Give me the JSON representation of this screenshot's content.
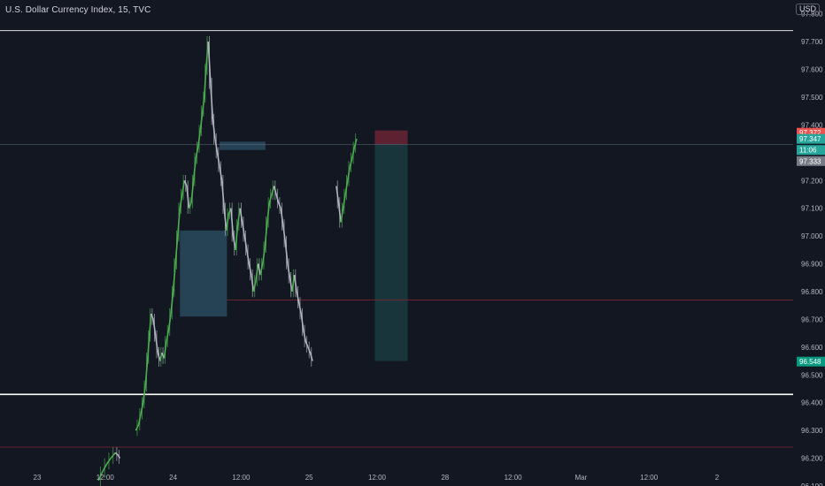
{
  "header": {
    "title": "U.S. Dollar Currency Index, 15, TVC",
    "currency": "USD"
  },
  "colors": {
    "background": "#131722",
    "up": "#4caf50",
    "down": "#b2b5be",
    "axis_text": "#b2b5be",
    "zone_blue": "#2a4a5e",
    "zone_target": "#17353a",
    "zone_stop": "#5c2232",
    "white_line": "#ffffff",
    "red_line": "#7a2630",
    "price_red": "#ef5350",
    "price_green": "#26a69a",
    "price_grey": "#787b86"
  },
  "chart_data": {
    "type": "candlestick",
    "ylim": [
      96.1,
      97.85
    ],
    "y_ticks": [
      "97.800",
      "97.700",
      "97.600",
      "97.500",
      "97.400",
      "97.200",
      "97.100",
      "97.000",
      "96.900",
      "96.800",
      "96.700",
      "96.600",
      "96.500",
      "96.400",
      "96.300",
      "96.200",
      "96.100"
    ],
    "x_ticks": [
      {
        "label": "23",
        "t": 0
      },
      {
        "label": "12:00",
        "t": 12
      },
      {
        "label": "24",
        "t": 24
      },
      {
        "label": "12:00",
        "t": 36
      },
      {
        "label": "25",
        "t": 48
      },
      {
        "label": "12:00",
        "t": 60
      },
      {
        "label": "28",
        "t": 72
      },
      {
        "label": "12:00",
        "t": 84
      },
      {
        "label": "Mar",
        "t": 96
      },
      {
        "label": "12:00",
        "t": 108
      },
      {
        "label": "2",
        "t": 120
      }
    ],
    "price_path": [
      [
        10.8,
        96.12
      ],
      [
        11.5,
        96.15
      ],
      [
        12.3,
        96.18
      ],
      [
        13.0,
        96.2
      ],
      [
        13.8,
        96.22
      ],
      [
        14.3,
        96.21
      ],
      [
        14.6,
        96.2
      ],
      [
        17.4,
        96.3
      ],
      [
        17.9,
        96.32
      ],
      [
        18.3,
        96.36
      ],
      [
        18.7,
        96.4
      ],
      [
        19.1,
        96.46
      ],
      [
        19.5,
        96.56
      ],
      [
        19.8,
        96.64
      ],
      [
        20.1,
        96.72
      ],
      [
        20.5,
        96.7
      ],
      [
        20.9,
        96.64
      ],
      [
        21.3,
        96.58
      ],
      [
        21.7,
        96.55
      ],
      [
        22.0,
        96.58
      ],
      [
        22.4,
        96.56
      ],
      [
        22.8,
        96.62
      ],
      [
        23.2,
        96.66
      ],
      [
        23.6,
        96.72
      ],
      [
        24.0,
        96.8
      ],
      [
        24.4,
        96.9
      ],
      [
        24.8,
        97.0
      ],
      [
        25.2,
        97.1
      ],
      [
        25.6,
        97.15
      ],
      [
        26.0,
        97.2
      ],
      [
        26.4,
        97.18
      ],
      [
        26.8,
        97.1
      ],
      [
        27.2,
        97.12
      ],
      [
        27.6,
        97.2
      ],
      [
        28.0,
        97.28
      ],
      [
        28.4,
        97.32
      ],
      [
        28.8,
        97.38
      ],
      [
        29.2,
        97.45
      ],
      [
        29.5,
        97.5
      ],
      [
        29.8,
        97.6
      ],
      [
        30.2,
        97.7
      ],
      [
        30.6,
        97.55
      ],
      [
        31.0,
        97.42
      ],
      [
        31.4,
        97.35
      ],
      [
        31.8,
        97.3
      ],
      [
        32.2,
        97.25
      ],
      [
        32.6,
        97.2
      ],
      [
        33.0,
        97.1
      ],
      [
        33.4,
        97.02
      ],
      [
        33.8,
        97.08
      ],
      [
        34.2,
        97.1
      ],
      [
        34.6,
        97.0
      ],
      [
        35.0,
        96.95
      ],
      [
        35.4,
        97.04
      ],
      [
        35.8,
        97.1
      ],
      [
        36.2,
        97.05
      ],
      [
        36.6,
        97.0
      ],
      [
        37.0,
        96.95
      ],
      [
        37.4,
        96.9
      ],
      [
        37.8,
        96.86
      ],
      [
        38.2,
        96.8
      ],
      [
        38.6,
        96.84
      ],
      [
        39.0,
        96.9
      ],
      [
        39.4,
        96.86
      ],
      [
        39.8,
        96.9
      ],
      [
        40.2,
        96.96
      ],
      [
        40.6,
        97.05
      ],
      [
        41.0,
        97.12
      ],
      [
        41.4,
        97.15
      ],
      [
        41.8,
        97.18
      ],
      [
        42.2,
        97.15
      ],
      [
        42.6,
        97.12
      ],
      [
        43.0,
        97.1
      ],
      [
        43.4,
        97.04
      ],
      [
        43.8,
        96.98
      ],
      [
        44.2,
        96.9
      ],
      [
        44.6,
        96.85
      ],
      [
        45.0,
        96.8
      ],
      [
        45.4,
        96.86
      ],
      [
        45.8,
        96.8
      ],
      [
        46.2,
        96.76
      ],
      [
        46.6,
        96.72
      ],
      [
        47.0,
        96.66
      ],
      [
        47.4,
        96.62
      ],
      [
        47.8,
        96.6
      ],
      [
        48.2,
        96.58
      ],
      [
        48.6,
        96.55
      ],
      [
        52.8,
        97.18
      ],
      [
        53.2,
        97.12
      ],
      [
        53.6,
        97.05
      ],
      [
        54.0,
        97.1
      ],
      [
        54.4,
        97.15
      ],
      [
        54.8,
        97.2
      ],
      [
        55.2,
        97.25
      ],
      [
        55.6,
        97.28
      ],
      [
        56.0,
        97.32
      ],
      [
        56.4,
        97.35
      ]
    ],
    "zones": [
      {
        "name": "demand-zone",
        "t0": 25.2,
        "t1": 33.5,
        "p0": 97.02,
        "p1": 96.71
      },
      {
        "name": "supply-zone",
        "t0": 32.2,
        "t1": 40.3,
        "p0": 97.34,
        "p1": 97.31
      },
      {
        "name": "position-stop",
        "t0": 59.6,
        "t1": 65.4,
        "p0": 97.38,
        "p1": 97.33
      },
      {
        "name": "position-target",
        "t0": 59.6,
        "t1": 65.4,
        "p0": 97.33,
        "p1": 96.55
      }
    ],
    "levels": [
      {
        "name": "top-level-line",
        "price": 97.74,
        "style": "white"
      },
      {
        "name": "resistance-line",
        "price": 97.33,
        "style": "thin"
      },
      {
        "name": "midline",
        "price": 96.77,
        "style": "red",
        "t0": 33.5
      },
      {
        "name": "support-line",
        "price": 96.43,
        "style": "white-thick"
      },
      {
        "name": "lower-red-line",
        "price": 96.24,
        "style": "red"
      }
    ],
    "price_tags": [
      {
        "text": "97.372",
        "price": 97.372,
        "color": "#ef5350"
      },
      {
        "text": "97.347",
        "price": 97.35,
        "color": "#26a69a"
      },
      {
        "text": "11:06",
        "price": 97.31,
        "color": "#26a69a"
      },
      {
        "text": "97.333",
        "price": 97.27,
        "color": "#787b86"
      },
      {
        "text": "96.548",
        "price": 96.548,
        "color": "#089981"
      }
    ]
  }
}
